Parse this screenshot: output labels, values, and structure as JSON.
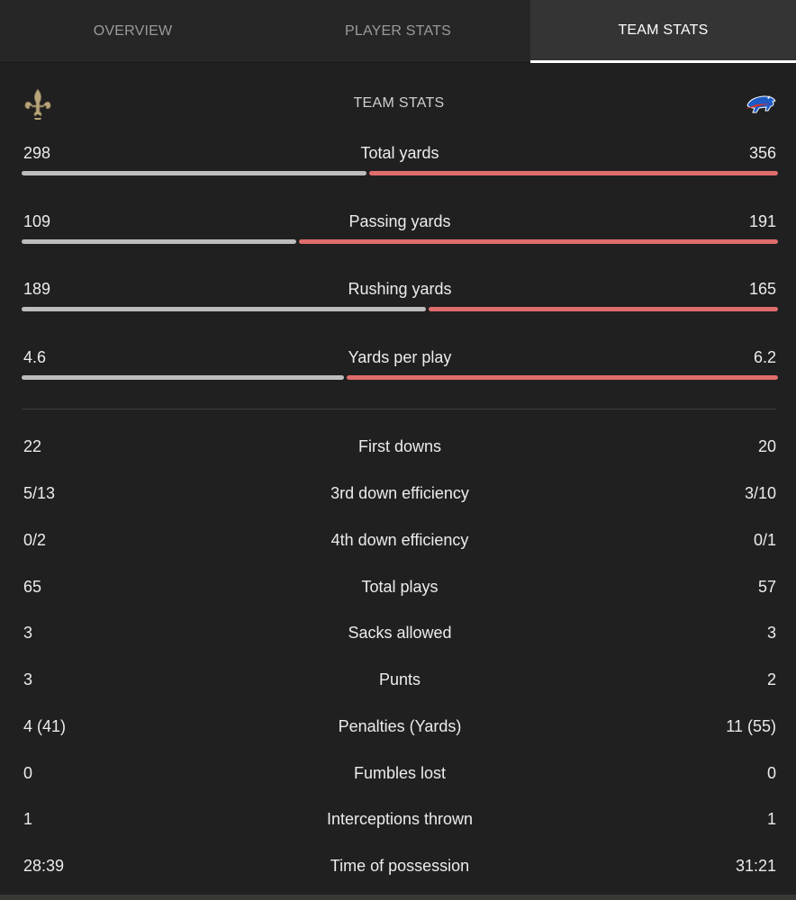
{
  "tabs": [
    {
      "label": "OVERVIEW",
      "active": false
    },
    {
      "label": "PLAYER STATS",
      "active": false
    },
    {
      "label": "TEAM STATS",
      "active": true
    }
  ],
  "section": {
    "title": "TEAM STATS",
    "left_logo": "fleur-de-lis-icon",
    "right_logo": "charging-buffalo-icon"
  },
  "bar_stats": [
    {
      "label": "Total yards",
      "left": "298",
      "right": "356",
      "left_share": 0.456
    },
    {
      "label": "Passing yards",
      "left": "109",
      "right": "191",
      "left_share": 0.363
    },
    {
      "label": "Rushing yards",
      "left": "189",
      "right": "165",
      "left_share": 0.534
    },
    {
      "label": "Yards per play",
      "left": "4.6",
      "right": "6.2",
      "left_share": 0.426
    }
  ],
  "stats": [
    {
      "label": "First downs",
      "left": "22",
      "right": "20"
    },
    {
      "label": "3rd down efficiency",
      "left": "5/13",
      "right": "3/10"
    },
    {
      "label": "4th down efficiency",
      "left": "0/2",
      "right": "0/1"
    },
    {
      "label": "Total plays",
      "left": "65",
      "right": "57"
    },
    {
      "label": "Sacks allowed",
      "left": "3",
      "right": "3"
    },
    {
      "label": "Punts",
      "left": "3",
      "right": "2"
    },
    {
      "label": "Penalties (Yards)",
      "left": "4 (41)",
      "right": "11 (55)"
    },
    {
      "label": "Fumbles lost",
      "left": "0",
      "right": "0"
    },
    {
      "label": "Interceptions thrown",
      "left": "1",
      "right": "1"
    },
    {
      "label": "Time of possession",
      "left": "28:39",
      "right": "31:21"
    }
  ],
  "colors": {
    "left_bar": "#bdbdbd",
    "right_bar": "#e06c6c",
    "background": "#202020"
  }
}
